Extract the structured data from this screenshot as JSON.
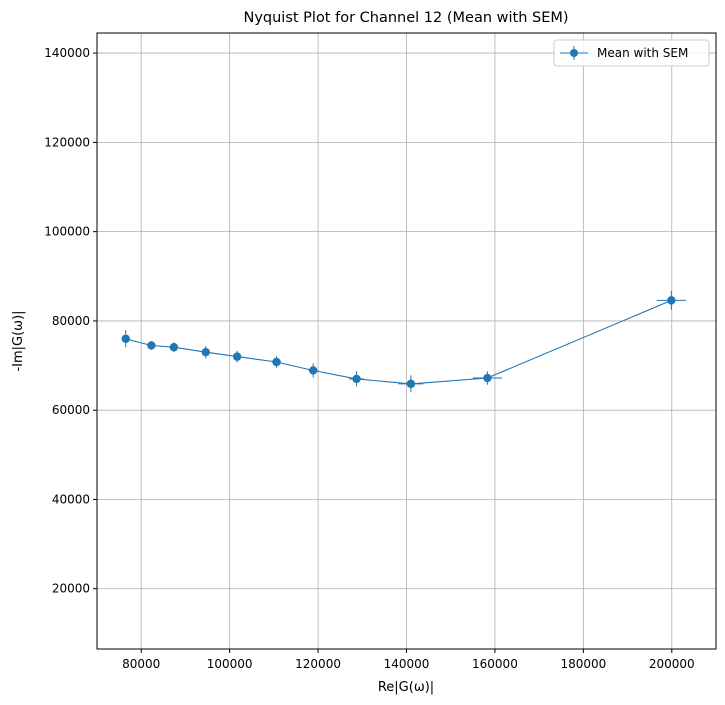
{
  "chart_data": {
    "type": "scatter",
    "title": "Nyquist Plot for Channel 12 (Mean with SEM)",
    "xlabel": "Re|G(ω)|",
    "ylabel": "-Im|G(ω)|",
    "xlim": [
      70000,
      210000
    ],
    "ylim": [
      6500,
      144500
    ],
    "xticks": [
      80000,
      100000,
      120000,
      140000,
      160000,
      180000,
      200000
    ],
    "yticks": [
      20000,
      40000,
      60000,
      80000,
      100000,
      120000,
      140000
    ],
    "xtick_labels": [
      "80000",
      "100000",
      "120000",
      "140000",
      "160000",
      "180000",
      "200000"
    ],
    "ytick_labels": [
      "20000",
      "40000",
      "60000",
      "80000",
      "100000",
      "120000",
      "140000"
    ],
    "grid": true,
    "legend_position": "top-right",
    "series": [
      {
        "name": "Mean with SEM",
        "color": "#1f77b4",
        "marker": "circle",
        "connected": true,
        "points": [
          {
            "x": 76500,
            "y": 76000,
            "xerr": 900,
            "yerr": 1900
          },
          {
            "x": 82300,
            "y": 74500,
            "xerr": 700,
            "yerr": 1000
          },
          {
            "x": 87400,
            "y": 74100,
            "xerr": 700,
            "yerr": 1100
          },
          {
            "x": 94600,
            "y": 73000,
            "xerr": 900,
            "yerr": 1400
          },
          {
            "x": 101700,
            "y": 72000,
            "xerr": 900,
            "yerr": 1300
          },
          {
            "x": 110600,
            "y": 70800,
            "xerr": 1000,
            "yerr": 1300
          },
          {
            "x": 118900,
            "y": 68900,
            "xerr": 1000,
            "yerr": 1600
          },
          {
            "x": 128700,
            "y": 67000,
            "xerr": 1700,
            "yerr": 1700
          },
          {
            "x": 141000,
            "y": 65900,
            "xerr": 2800,
            "yerr": 1900
          },
          {
            "x": 158300,
            "y": 67200,
            "xerr": 3300,
            "yerr": 1500
          },
          {
            "x": 199900,
            "y": 84600,
            "xerr": 3300,
            "yerr": 2100
          }
        ]
      }
    ]
  }
}
